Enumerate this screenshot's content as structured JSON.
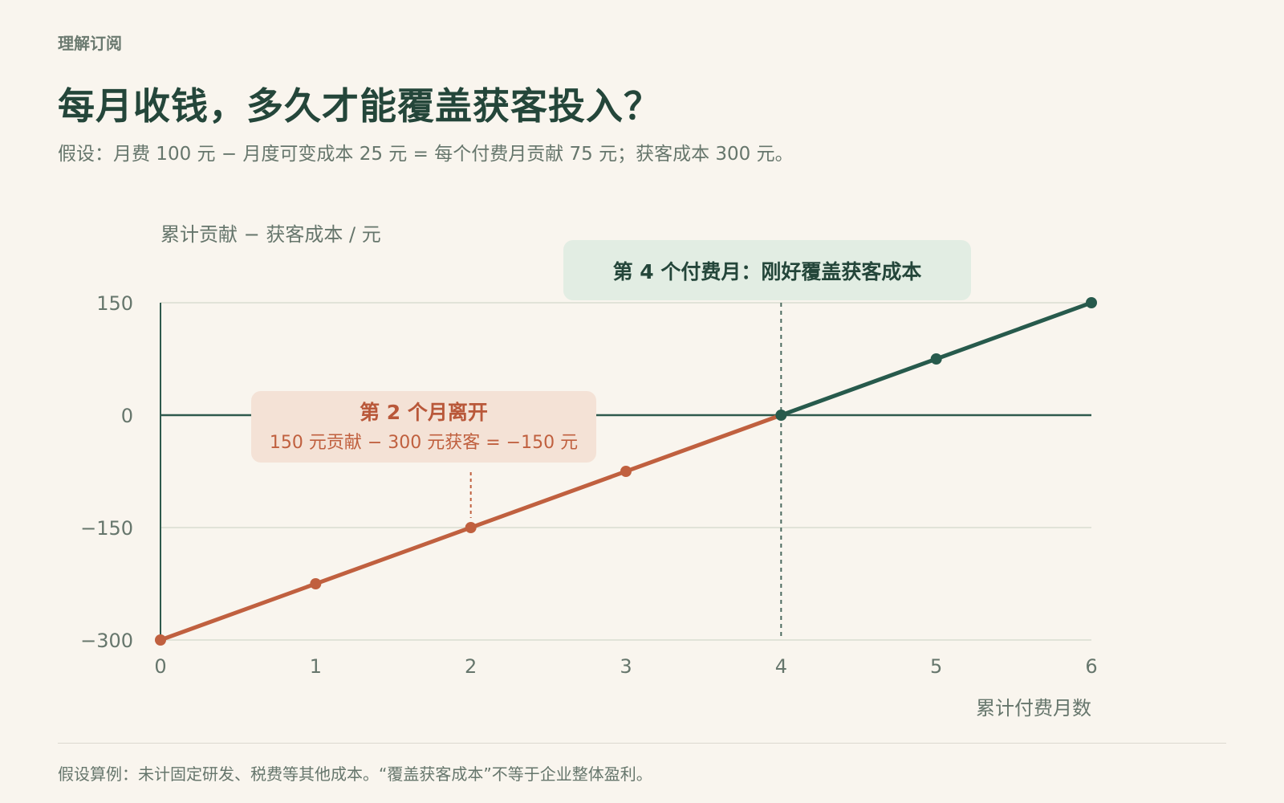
{
  "header": {
    "eyebrow": "理解订阅",
    "title": "每月收钱，多久才能覆盖获客投入？",
    "subtitle": "假设：月费 100 元 − 月度可变成本 25 元 = 每个付费月贡献 75 元；获客成本 300 元。"
  },
  "chart_data": {
    "type": "line",
    "ylabel": "累计贡献 − 获客成本 / 元",
    "xlabel": "累计付费月数",
    "x": [
      0,
      1,
      2,
      3,
      4,
      5,
      6
    ],
    "values": [
      -300,
      -225,
      -150,
      -75,
      0,
      75,
      150
    ],
    "xlim": [
      0,
      6
    ],
    "ylim": [
      -300,
      150
    ],
    "yticks": [
      150,
      0,
      -150,
      -300
    ],
    "ytick_labels": [
      "150",
      "0",
      "−150",
      "−300"
    ],
    "xticks": [
      "0",
      "1",
      "2",
      "3",
      "4",
      "5",
      "6"
    ],
    "grid": true,
    "colors": {
      "loss": "#c0603f",
      "gain": "#275a4c",
      "axis": "#2f5a4d",
      "grid": "#d9ddd0"
    },
    "annotations": [
      {
        "id": "breakeven",
        "x": 4,
        "y": 0,
        "text": "第 4 个付费月：刚好覆盖获客成本"
      },
      {
        "id": "churn",
        "x": 2,
        "y": -150,
        "title": "第 2 个月离开",
        "text": "150 元贡献 − 300 元获客 = −150 元"
      }
    ]
  },
  "footnote": "假设算例：未计固定研发、税费等其他成本。“覆盖获客成本”不等于企业整体盈利。"
}
